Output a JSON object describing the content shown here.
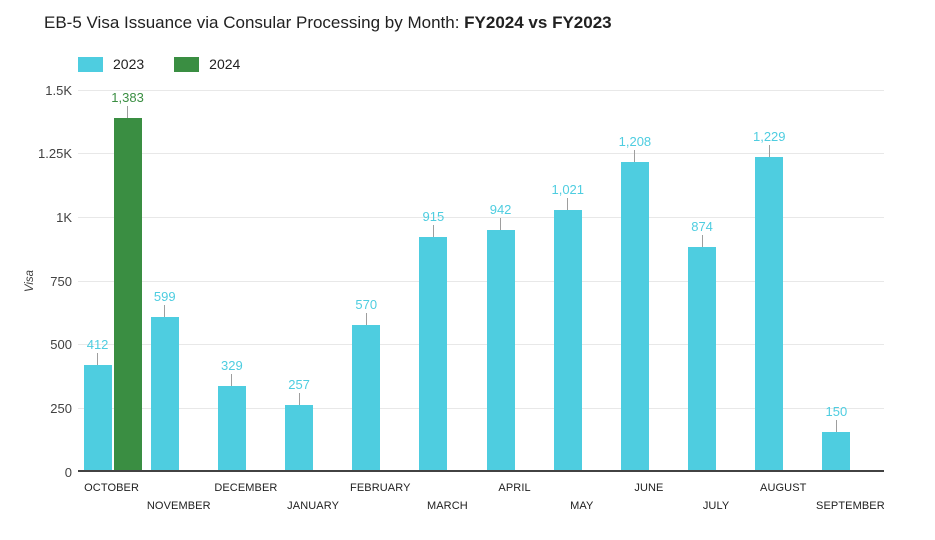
{
  "title": {
    "normal": "EB-5 Visa Issuance via Consular Processing by Month: ",
    "bold": "FY2024 vs FY2023"
  },
  "legend": {
    "items": [
      {
        "label": "2023",
        "color": "#4ECDE0"
      },
      {
        "label": "2024",
        "color": "#3A8E42"
      }
    ]
  },
  "chart_data": {
    "type": "bar",
    "title": "EB-5 Visa Issuance via Consular Processing by Month: FY2024 vs FY2023",
    "xlabel": "",
    "ylabel": "Visa",
    "ylim": [
      0,
      1500
    ],
    "grid": true,
    "legend_position": "top-left",
    "y_ticks": [
      {
        "value": 0,
        "label": "0"
      },
      {
        "value": 250,
        "label": "250"
      },
      {
        "value": 500,
        "label": "500"
      },
      {
        "value": 750,
        "label": "750"
      },
      {
        "value": 1000,
        "label": "1K"
      },
      {
        "value": 1250,
        "label": "1.25K"
      },
      {
        "value": 1500,
        "label": "1.5K"
      }
    ],
    "categories": [
      "OCTOBER",
      "NOVEMBER",
      "DECEMBER",
      "JANUARY",
      "FEBRUARY",
      "MARCH",
      "APRIL",
      "MAY",
      "JUNE",
      "JULY",
      "AUGUST",
      "SEPTEMBER"
    ],
    "series": [
      {
        "name": "2023",
        "color": "#4ECDE0",
        "values": [
          412,
          599,
          329,
          257,
          570,
          915,
          942,
          1021,
          1208,
          874,
          1229,
          150
        ]
      },
      {
        "name": "2024",
        "color": "#3A8E42",
        "values": [
          1383,
          null,
          null,
          null,
          null,
          null,
          null,
          null,
          null,
          null,
          null,
          null
        ]
      }
    ]
  },
  "colors": {
    "grid": "#e8e8e8",
    "axis": "#424242",
    "title_text": "#212121",
    "tick_text": "#424242",
    "stem": "#9e9e9e"
  }
}
